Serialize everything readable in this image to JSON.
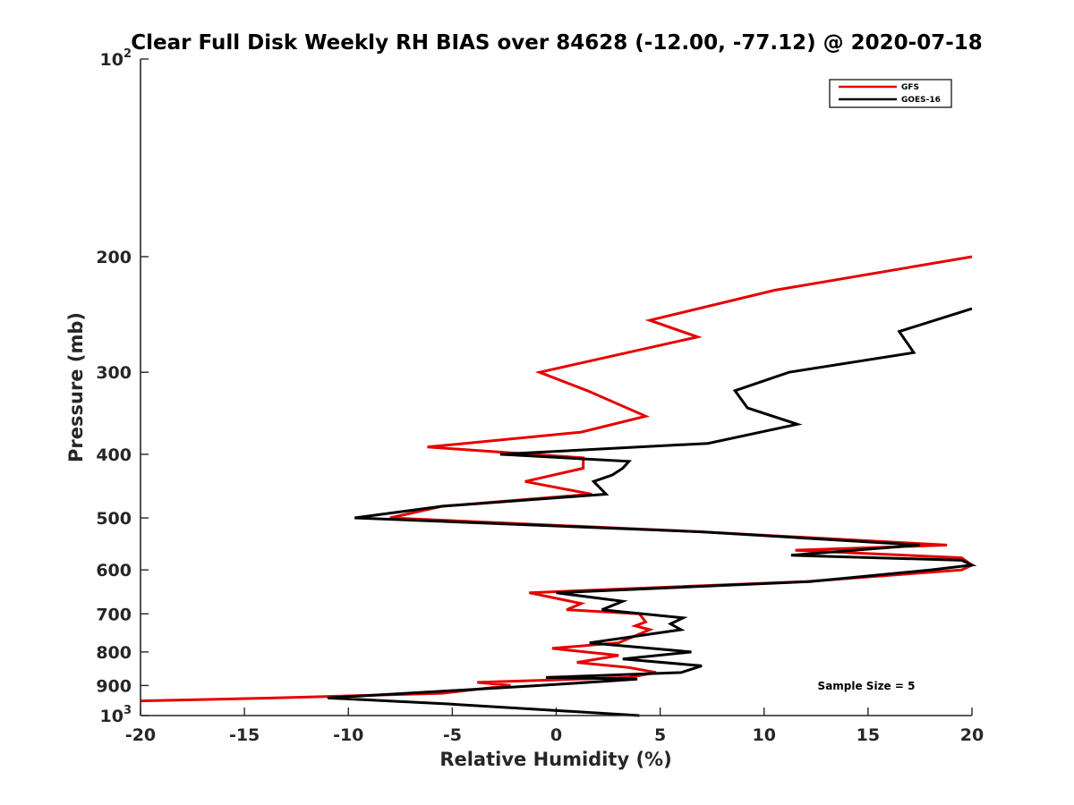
{
  "chart_data": {
    "type": "line",
    "title": "Clear Full Disk Weekly RH BIAS over 84628 (-12.00, -77.12) @ 2020-07-18",
    "xlabel": "Relative Humidity (%)",
    "ylabel": "Pressure (mb)",
    "xlim": [
      -20,
      20
    ],
    "ylim": [
      100,
      1000
    ],
    "yscale": "log",
    "y_reversed": true,
    "grid": false,
    "legend_position": "top-right",
    "x_ticks": [
      "-20",
      "-15",
      "-10",
      "-5",
      "0",
      "5",
      "10",
      "15",
      "20"
    ],
    "x_tick_values": [
      -20,
      -15,
      -10,
      -5,
      0,
      5,
      10,
      15,
      20
    ],
    "y_ticks": [
      {
        "value": 100,
        "base": "10",
        "exp": "2"
      },
      {
        "value": 200,
        "label": "200"
      },
      {
        "value": 300,
        "label": "300"
      },
      {
        "value": 400,
        "label": "400"
      },
      {
        "value": 500,
        "label": "500"
      },
      {
        "value": 600,
        "label": "600"
      },
      {
        "value": 700,
        "label": "700"
      },
      {
        "value": 800,
        "label": "800"
      },
      {
        "value": 900,
        "label": "900"
      },
      {
        "value": 1000,
        "base": "10",
        "exp": "3"
      }
    ],
    "annotation": "Sample Size = 5",
    "series": [
      {
        "name": "GFS",
        "color": "#e60000",
        "points": [
          [
            20.0,
            200
          ],
          [
            10.5,
            225
          ],
          [
            4.5,
            250
          ],
          [
            6.8,
            265
          ],
          [
            -0.8,
            300
          ],
          [
            1.5,
            320
          ],
          [
            4.3,
            350
          ],
          [
            1.2,
            370
          ],
          [
            -6.2,
            390
          ],
          [
            1.3,
            405
          ],
          [
            1.3,
            420
          ],
          [
            -1.5,
            440
          ],
          [
            1.7,
            460
          ],
          [
            -5.5,
            480
          ],
          [
            -8.0,
            500
          ],
          [
            7.0,
            525
          ],
          [
            18.8,
            550
          ],
          [
            11.5,
            560
          ],
          [
            19.5,
            575
          ],
          [
            20.0,
            590
          ],
          [
            19.5,
            600
          ],
          [
            12.0,
            625
          ],
          [
            -1.3,
            650
          ],
          [
            1.2,
            675
          ],
          [
            0.5,
            690
          ],
          [
            4.0,
            700
          ],
          [
            4.3,
            720
          ],
          [
            3.8,
            730
          ],
          [
            4.5,
            740
          ],
          [
            3.0,
            775
          ],
          [
            -0.2,
            790
          ],
          [
            3.0,
            810
          ],
          [
            1.0,
            830
          ],
          [
            3.5,
            845
          ],
          [
            4.8,
            860
          ],
          [
            3.5,
            875
          ],
          [
            -3.8,
            890
          ],
          [
            -2.2,
            900
          ],
          [
            -5.5,
            925
          ],
          [
            -13.5,
            940
          ],
          [
            -20.0,
            950
          ]
        ]
      },
      {
        "name": "GOES-16",
        "color": "#000000",
        "points": [
          [
            20.0,
            240
          ],
          [
            16.5,
            260
          ],
          [
            17.2,
            280
          ],
          [
            11.2,
            300
          ],
          [
            8.6,
            320
          ],
          [
            9.2,
            340
          ],
          [
            11.6,
            360
          ],
          [
            7.3,
            385
          ],
          [
            -2.7,
            400
          ],
          [
            3.5,
            410
          ],
          [
            3.2,
            420
          ],
          [
            2.7,
            430
          ],
          [
            1.8,
            440
          ],
          [
            2.4,
            460
          ],
          [
            -5.5,
            480
          ],
          [
            -9.7,
            500
          ],
          [
            7.0,
            525
          ],
          [
            17.5,
            550
          ],
          [
            11.3,
            570
          ],
          [
            19.5,
            580
          ],
          [
            20.0,
            590
          ],
          [
            18.0,
            600
          ],
          [
            12.2,
            625
          ],
          [
            0.0,
            650
          ],
          [
            3.2,
            670
          ],
          [
            2.2,
            690
          ],
          [
            6.1,
            710
          ],
          [
            5.5,
            725
          ],
          [
            6.0,
            740
          ],
          [
            1.6,
            775
          ],
          [
            6.5,
            800
          ],
          [
            3.2,
            820
          ],
          [
            7.0,
            840
          ],
          [
            6.0,
            860
          ],
          [
            -0.5,
            875
          ],
          [
            3.9,
            880
          ],
          [
            -0.8,
            900
          ],
          [
            -11.0,
            940
          ],
          [
            -5.2,
            960
          ],
          [
            4.0,
            1000
          ]
        ]
      }
    ]
  }
}
